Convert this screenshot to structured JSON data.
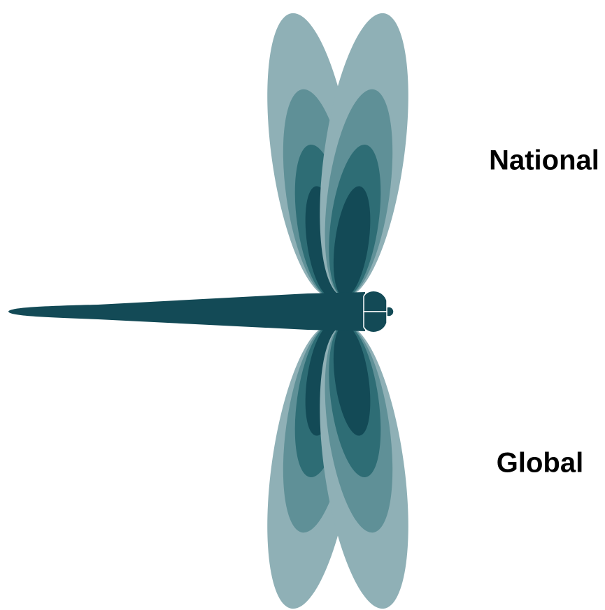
{
  "labels": [
    "National",
    "Global"
  ]
}
